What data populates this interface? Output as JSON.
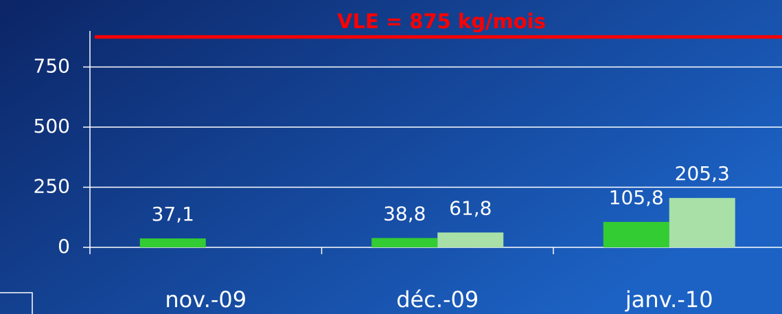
{
  "chart_data": {
    "type": "bar",
    "categories": [
      "nov.-09",
      "déc.-09",
      "janv.-10"
    ],
    "series": [
      {
        "color": "#33cc33",
        "values": [
          37.1,
          38.8,
          105.8
        ],
        "value_labels": [
          "37,1",
          "38,8",
          "105,8"
        ]
      },
      {
        "color": "#a8e0a8",
        "values": [
          null,
          61.8,
          205.3
        ],
        "value_labels": [
          null,
          "61,8",
          "205,3"
        ]
      }
    ],
    "ylim": [
      0,
      900
    ],
    "yticks": [
      0,
      250,
      500,
      750
    ],
    "grid": true,
    "reference_line": {
      "value": 875,
      "label": "VLE = 875 kg/mois",
      "color": "#ff0000"
    }
  }
}
